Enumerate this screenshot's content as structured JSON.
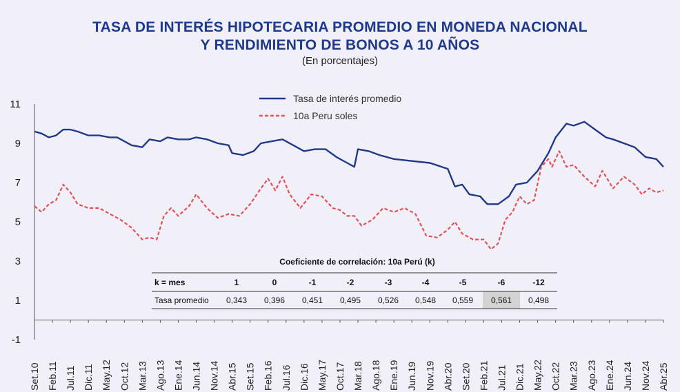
{
  "title_line1": "TASA DE INTERÉS HIPOTECARIA PROMEDIO EN MONEDA NACIONAL",
  "title_line2": "Y RENDIMIENTO DE BONOS A 10 AÑOS",
  "subtitle": "(En porcentajes)",
  "colors": {
    "title": "#1f3a8a",
    "series1": "#1f3a8a",
    "series2": "#e0535a",
    "highlight_cell": "#d3d3d3"
  },
  "chart_data": {
    "type": "line",
    "ylim": [
      -1,
      11
    ],
    "yticks": [
      -1,
      1,
      3,
      5,
      7,
      9,
      11
    ],
    "x_start": "2010-09",
    "x_end": "2025-04",
    "xtick_labels": [
      "Set.10",
      "Feb.11",
      "Jul.11",
      "Dic.11",
      "May.12",
      "Oct.12",
      "Mar.13",
      "Ago.13",
      "Ene.14",
      "Jun.14",
      "Nov.14",
      "Abr.15",
      "Set.15",
      "Feb.16",
      "Jul.16",
      "Dic.16",
      "May.17",
      "Oct.17",
      "Mar.18",
      "Ago.18",
      "Ene.19",
      "Jun.19",
      "Nov.19",
      "Abr.20",
      "Set.20",
      "Feb.21",
      "Jul.21",
      "Dic.21",
      "May.22",
      "Oct.22",
      "Mar.23",
      "Ago.23",
      "Ene.24",
      "Jun.24",
      "Nov.24",
      "Abr.25"
    ],
    "legend_position": "top-center",
    "series": [
      {
        "name": "Tasa de interés promedio",
        "style": "solid",
        "points": [
          [
            "2010-09",
            9.6
          ],
          [
            "2010-11",
            9.5
          ],
          [
            "2011-01",
            9.3
          ],
          [
            "2011-03",
            9.4
          ],
          [
            "2011-05",
            9.7
          ],
          [
            "2011-07",
            9.7
          ],
          [
            "2011-09",
            9.6
          ],
          [
            "2011-12",
            9.4
          ],
          [
            "2012-03",
            9.4
          ],
          [
            "2012-06",
            9.3
          ],
          [
            "2012-08",
            9.3
          ],
          [
            "2012-10",
            9.1
          ],
          [
            "2012-12",
            8.9
          ],
          [
            "2013-03",
            8.8
          ],
          [
            "2013-05",
            9.2
          ],
          [
            "2013-08",
            9.1
          ],
          [
            "2013-10",
            9.3
          ],
          [
            "2014-01",
            9.2
          ],
          [
            "2014-04",
            9.2
          ],
          [
            "2014-06",
            9.3
          ],
          [
            "2014-09",
            9.2
          ],
          [
            "2014-12",
            9.0
          ],
          [
            "2015-03",
            8.9
          ],
          [
            "2015-04",
            8.5
          ],
          [
            "2015-07",
            8.4
          ],
          [
            "2015-10",
            8.6
          ],
          [
            "2015-12",
            9.0
          ],
          [
            "2016-03",
            9.1
          ],
          [
            "2016-06",
            9.2
          ],
          [
            "2016-09",
            8.9
          ],
          [
            "2016-12",
            8.6
          ],
          [
            "2017-03",
            8.7
          ],
          [
            "2017-06",
            8.7
          ],
          [
            "2017-09",
            8.3
          ],
          [
            "2017-12",
            8.0
          ],
          [
            "2018-02",
            7.8
          ],
          [
            "2018-03",
            8.7
          ],
          [
            "2018-06",
            8.6
          ],
          [
            "2018-09",
            8.4
          ],
          [
            "2019-01",
            8.2
          ],
          [
            "2019-06",
            8.1
          ],
          [
            "2019-11",
            8.0
          ],
          [
            "2020-04",
            7.7
          ],
          [
            "2020-06",
            6.8
          ],
          [
            "2020-08",
            6.9
          ],
          [
            "2020-10",
            6.4
          ],
          [
            "2021-01",
            6.3
          ],
          [
            "2021-03",
            5.9
          ],
          [
            "2021-06",
            5.9
          ],
          [
            "2021-09",
            6.3
          ],
          [
            "2021-11",
            6.9
          ],
          [
            "2022-02",
            7.0
          ],
          [
            "2022-05",
            7.6
          ],
          [
            "2022-08",
            8.5
          ],
          [
            "2022-10",
            9.3
          ],
          [
            "2023-01",
            10.0
          ],
          [
            "2023-03",
            9.9
          ],
          [
            "2023-06",
            10.1
          ],
          [
            "2023-09",
            9.7
          ],
          [
            "2023-12",
            9.3
          ],
          [
            "2024-02",
            9.2
          ],
          [
            "2024-05",
            9.0
          ],
          [
            "2024-08",
            8.8
          ],
          [
            "2024-11",
            8.3
          ],
          [
            "2025-02",
            8.2
          ],
          [
            "2025-04",
            7.8
          ]
        ]
      },
      {
        "name": "10a Peru soles",
        "style": "dashed",
        "points": [
          [
            "2010-09",
            5.8
          ],
          [
            "2010-11",
            5.5
          ],
          [
            "2011-01",
            5.9
          ],
          [
            "2011-03",
            6.1
          ],
          [
            "2011-05",
            6.9
          ],
          [
            "2011-07",
            6.5
          ],
          [
            "2011-09",
            5.9
          ],
          [
            "2011-12",
            5.7
          ],
          [
            "2012-03",
            5.7
          ],
          [
            "2012-06",
            5.4
          ],
          [
            "2012-09",
            5.1
          ],
          [
            "2012-12",
            4.7
          ],
          [
            "2013-03",
            4.1
          ],
          [
            "2013-05",
            4.2
          ],
          [
            "2013-07",
            4.1
          ],
          [
            "2013-09",
            5.3
          ],
          [
            "2013-11",
            5.7
          ],
          [
            "2014-01",
            5.3
          ],
          [
            "2014-04",
            5.8
          ],
          [
            "2014-06",
            6.4
          ],
          [
            "2014-09",
            5.7
          ],
          [
            "2014-12",
            5.2
          ],
          [
            "2015-03",
            5.4
          ],
          [
            "2015-06",
            5.3
          ],
          [
            "2015-09",
            5.9
          ],
          [
            "2015-12",
            6.7
          ],
          [
            "2016-02",
            7.2
          ],
          [
            "2016-04",
            6.6
          ],
          [
            "2016-06",
            7.3
          ],
          [
            "2016-08",
            6.4
          ],
          [
            "2016-11",
            5.7
          ],
          [
            "2017-02",
            6.4
          ],
          [
            "2017-05",
            6.3
          ],
          [
            "2017-08",
            5.7
          ],
          [
            "2017-10",
            5.6
          ],
          [
            "2017-12",
            5.3
          ],
          [
            "2018-02",
            5.3
          ],
          [
            "2018-04",
            4.8
          ],
          [
            "2018-07",
            5.1
          ],
          [
            "2018-10",
            5.7
          ],
          [
            "2019-01",
            5.5
          ],
          [
            "2019-04",
            5.7
          ],
          [
            "2019-07",
            5.4
          ],
          [
            "2019-10",
            4.3
          ],
          [
            "2020-01",
            4.2
          ],
          [
            "2020-04",
            4.6
          ],
          [
            "2020-06",
            5.0
          ],
          [
            "2020-08",
            4.4
          ],
          [
            "2020-11",
            4.1
          ],
          [
            "2021-02",
            4.1
          ],
          [
            "2021-04",
            3.6
          ],
          [
            "2021-06",
            3.9
          ],
          [
            "2021-08",
            5.1
          ],
          [
            "2021-10",
            5.5
          ],
          [
            "2021-12",
            6.3
          ],
          [
            "2022-02",
            5.9
          ],
          [
            "2022-04",
            6.1
          ],
          [
            "2022-06",
            7.8
          ],
          [
            "2022-08",
            8.2
          ],
          [
            "2022-09",
            7.8
          ],
          [
            "2022-11",
            8.6
          ],
          [
            "2023-01",
            7.8
          ],
          [
            "2023-03",
            7.9
          ],
          [
            "2023-06",
            7.3
          ],
          [
            "2023-09",
            6.8
          ],
          [
            "2023-11",
            7.6
          ],
          [
            "2024-02",
            6.7
          ],
          [
            "2024-05",
            7.3
          ],
          [
            "2024-08",
            6.9
          ],
          [
            "2024-10",
            6.4
          ],
          [
            "2024-12",
            6.7
          ],
          [
            "2025-02",
            6.5
          ],
          [
            "2025-04",
            6.6
          ]
        ]
      }
    ]
  },
  "correlation_table": {
    "title": "Coeficiente de correlación: 10a Perú (k)",
    "header_label": "k = mes",
    "header_values": [
      "1",
      "0",
      "-1",
      "-2",
      "-3",
      "-4",
      "-5",
      "-6",
      "-12"
    ],
    "row_label": "Tasa promedio",
    "row_values": [
      "0,343",
      "0,396",
      "0,451",
      "0,495",
      "0,526",
      "0,548",
      "0,559",
      "0,561",
      "0,498"
    ],
    "highlight_index": 7
  }
}
